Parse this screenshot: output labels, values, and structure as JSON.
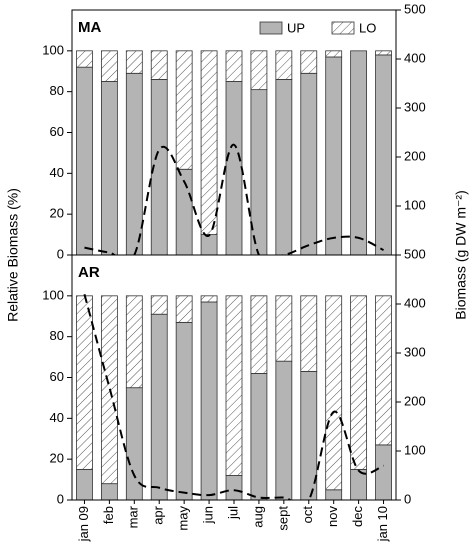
{
  "chart_data": [
    {
      "type": "bar",
      "stacked": true,
      "title": "MA",
      "y_label": "Relative Biomass (%)",
      "y2_label": "Biomass (g DW m⁻²)",
      "legend": "upper right",
      "series": [
        {
          "name": "UP",
          "color": "#b4b4b4",
          "values": [
            92,
            85,
            89,
            86,
            42,
            10,
            85,
            81,
            86,
            89,
            97,
            100,
            98
          ]
        },
        {
          "name": "LO",
          "color": "hatch",
          "values": [
            8,
            15,
            11,
            14,
            58,
            90,
            15,
            19,
            14,
            11,
            3,
            0,
            2
          ]
        },
        {
          "type": "line",
          "axis": "y2",
          "color": "#000000",
          "dashed": true,
          "values": [
            15,
            5,
            0,
            215,
            150,
            40,
            225,
            0,
            0,
            20,
            35,
            35,
            10
          ]
        }
      ],
      "ylim": [
        0,
        120
      ],
      "yticks": [
        0,
        20,
        40,
        60,
        80,
        100
      ],
      "y2lim": [
        0,
        500
      ],
      "y2ticks": [
        100,
        200,
        300,
        400,
        500
      ]
    },
    {
      "type": "bar",
      "stacked": true,
      "title": "AR",
      "categories": [
        "jan 09",
        "feb",
        "mar",
        "apr",
        "may",
        "jun",
        "jul",
        "aug",
        "sept",
        "oct",
        "nov",
        "dec",
        "jan 10"
      ],
      "series": [
        {
          "name": "UP",
          "color": "#b4b4b4",
          "values": [
            15,
            8,
            55,
            91,
            87,
            97,
            12,
            62,
            68,
            63,
            5,
            15,
            27
          ]
        },
        {
          "name": "LO",
          "color": "hatch",
          "values": [
            85,
            92,
            45,
            9,
            13,
            3,
            88,
            38,
            32,
            37,
            95,
            85,
            73
          ]
        },
        {
          "type": "line",
          "axis": "y2",
          "color": "#000000",
          "dashed": true,
          "values": [
            420,
            230,
            50,
            25,
            15,
            10,
            20,
            5,
            5,
            0,
            180,
            60,
            70
          ]
        }
      ],
      "ylim": [
        0,
        120
      ],
      "yticks": [
        0,
        20,
        40,
        60,
        80,
        100
      ],
      "y2lim": [
        0,
        500
      ],
      "y2ticks": [
        0,
        100,
        200,
        300,
        400,
        500
      ]
    }
  ]
}
